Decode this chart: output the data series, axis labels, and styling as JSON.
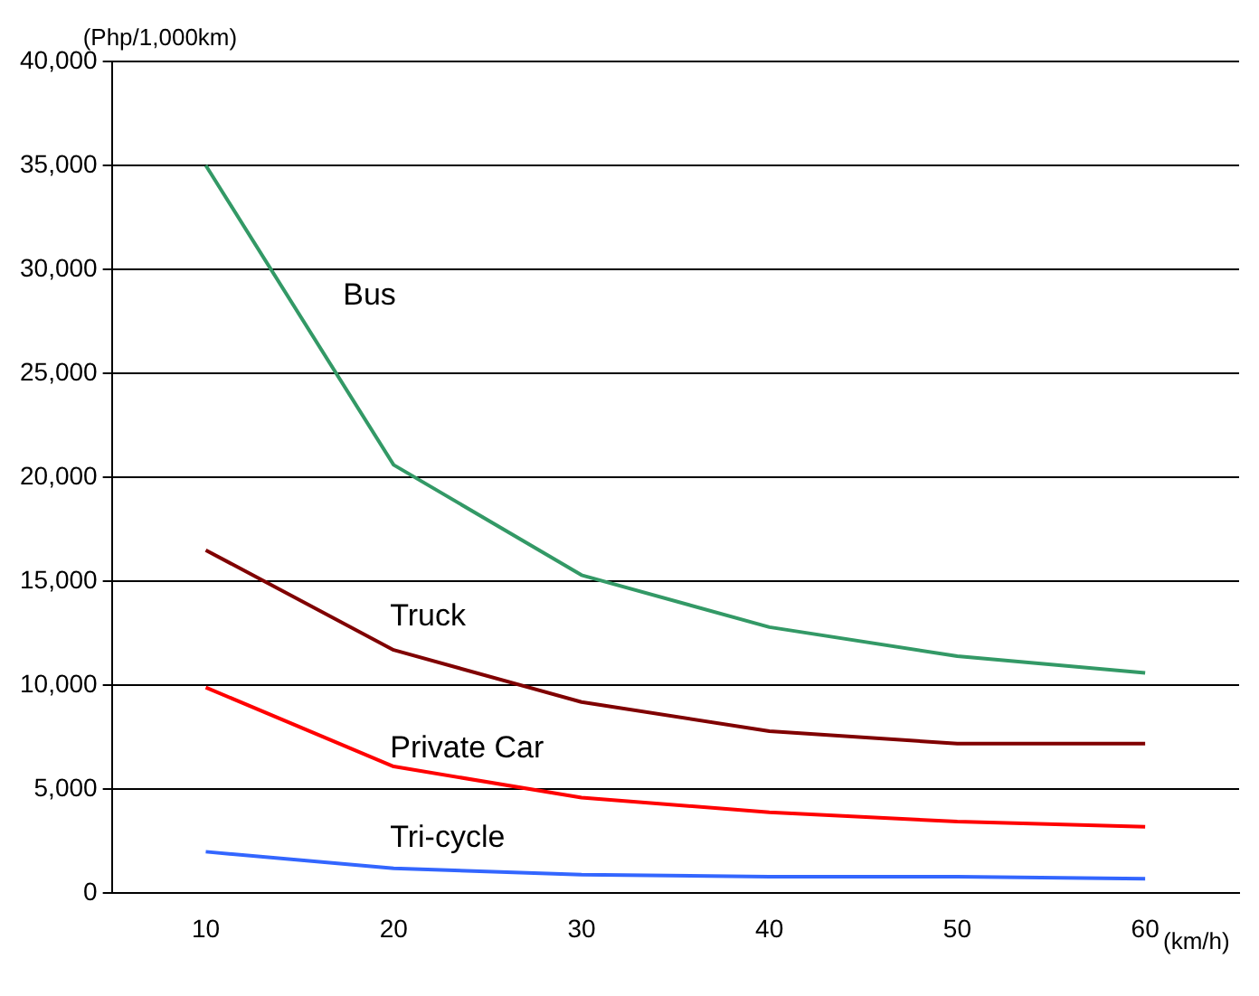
{
  "chart_data": {
    "type": "line",
    "ylabel": "(Php/1,000km)",
    "xlabel": "(km/h)",
    "categories": [
      "10",
      "20",
      "30",
      "40",
      "50",
      "60"
    ],
    "series": [
      {
        "name": "Bus",
        "color": "#339966",
        "values": [
          35000,
          20600,
          15300,
          12800,
          11400,
          10600
        ]
      },
      {
        "name": "Truck",
        "color": "#800000",
        "values": [
          16500,
          11700,
          9200,
          7800,
          7200,
          7200
        ]
      },
      {
        "name": "Private Car",
        "color": "#ff0000",
        "values": [
          9900,
          6100,
          4600,
          3900,
          3450,
          3200
        ]
      },
      {
        "name": "Tri-cycle",
        "color": "#3366ff",
        "values": [
          2000,
          1200,
          900,
          800,
          800,
          700
        ]
      }
    ],
    "ylim": [
      0,
      40000
    ],
    "yticks": [
      {
        "value": 0,
        "label": "0"
      },
      {
        "value": 5000,
        "label": "5,000"
      },
      {
        "value": 10000,
        "label": "10,000"
      },
      {
        "value": 15000,
        "label": "15,000"
      },
      {
        "value": 20000,
        "label": "20,000"
      },
      {
        "value": 25000,
        "label": "25,000"
      },
      {
        "value": 30000,
        "label": "30,000"
      },
      {
        "value": 35000,
        "label": "35,000"
      },
      {
        "value": 40000,
        "label": "40,000"
      }
    ],
    "grid": "y",
    "legend": false,
    "marker": "none",
    "line_style": "solid"
  }
}
